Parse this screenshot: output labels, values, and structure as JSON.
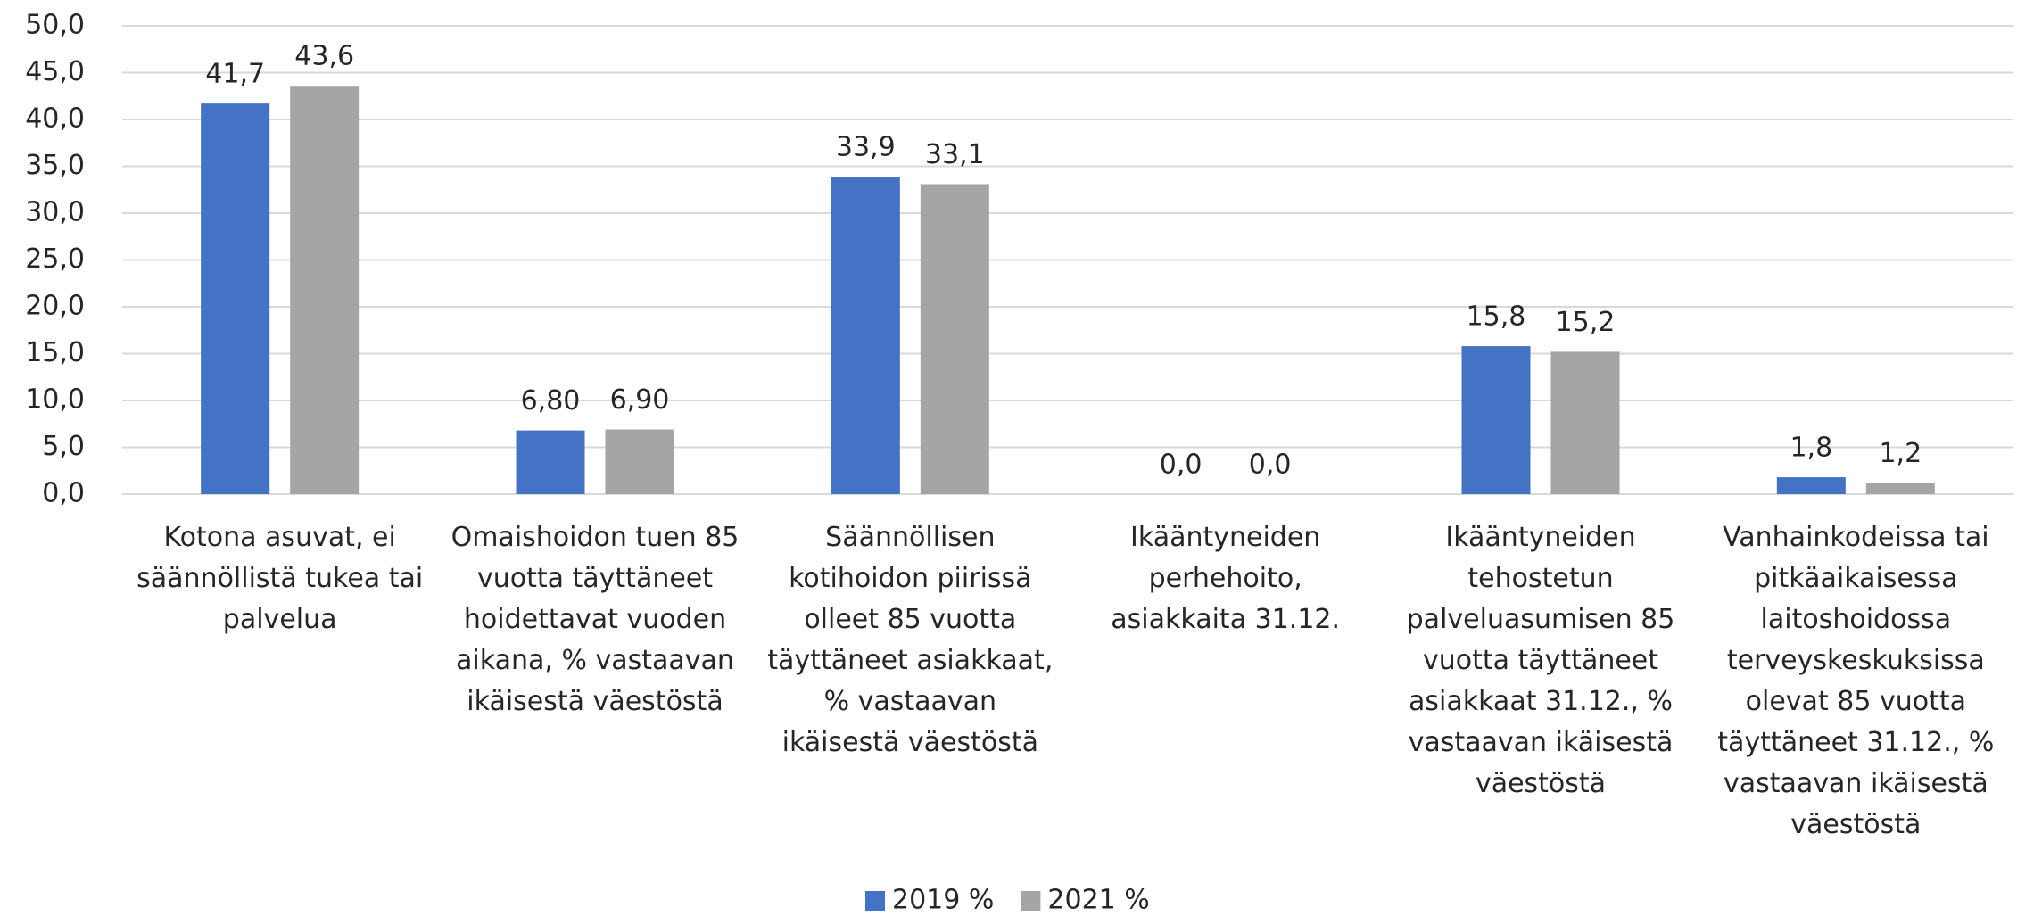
{
  "chart_data": {
    "type": "bar",
    "categories": [
      "Kotona asuvat, ei säännöllistä tukea tai palvelua",
      "Omaishoidon tuen 85 vuotta täyttäneet hoidettavat vuoden aikana, % vastaavan ikäisestä väestöstä",
      "Säännöllisen kotihoidon piirissä olleet 85 vuotta täyttäneet asiakkaat, % vastaavan ikäisestä väestöstä",
      "Ikääntyneiden perhehoito, asiakkaita 31.12.",
      "Ikääntyneiden tehostetun palveluasumisen 85 vuotta täyttäneet asiakkaat 31.12., % vastaavan ikäisestä väestöstä",
      "Vanhainkodeissa tai pitkäaikaisessa laitoshoidossa terveyskeskuksissa olevat 85 vuotta täyttäneet 31.12., % vastaavan ikäisestä väestöstä"
    ],
    "series": [
      {
        "name": "2019 %",
        "color": "#4472c4",
        "values": [
          41.7,
          6.8,
          33.9,
          0,
          15.8,
          1.8
        ],
        "value_labels": [
          "41,7",
          "6,80",
          "33,9",
          "0,0",
          "15,8",
          "1,8"
        ]
      },
      {
        "name": "2021 %",
        "color": "#a5a5a5",
        "values": [
          43.6,
          6.9,
          33.1,
          0,
          15.2,
          1.2
        ],
        "value_labels": [
          "43,6",
          "6,90",
          "33,1",
          "0,0",
          "15,2",
          "1,2"
        ]
      }
    ],
    "ylim": [
      0,
      50
    ],
    "yticks": [
      {
        "value": 0,
        "label": "0,0"
      },
      {
        "value": 5,
        "label": "5,0"
      },
      {
        "value": 10,
        "label": "10,0"
      },
      {
        "value": 15,
        "label": "15,0"
      },
      {
        "value": 20,
        "label": "20,0"
      },
      {
        "value": 25,
        "label": "25,0"
      },
      {
        "value": 30,
        "label": "30,0"
      },
      {
        "value": 35,
        "label": "35,0"
      },
      {
        "value": 40,
        "label": "40,0"
      },
      {
        "value": 45,
        "label": "45,0"
      },
      {
        "value": 50,
        "label": "50,0"
      }
    ],
    "grid": true,
    "legend": "bottom"
  }
}
